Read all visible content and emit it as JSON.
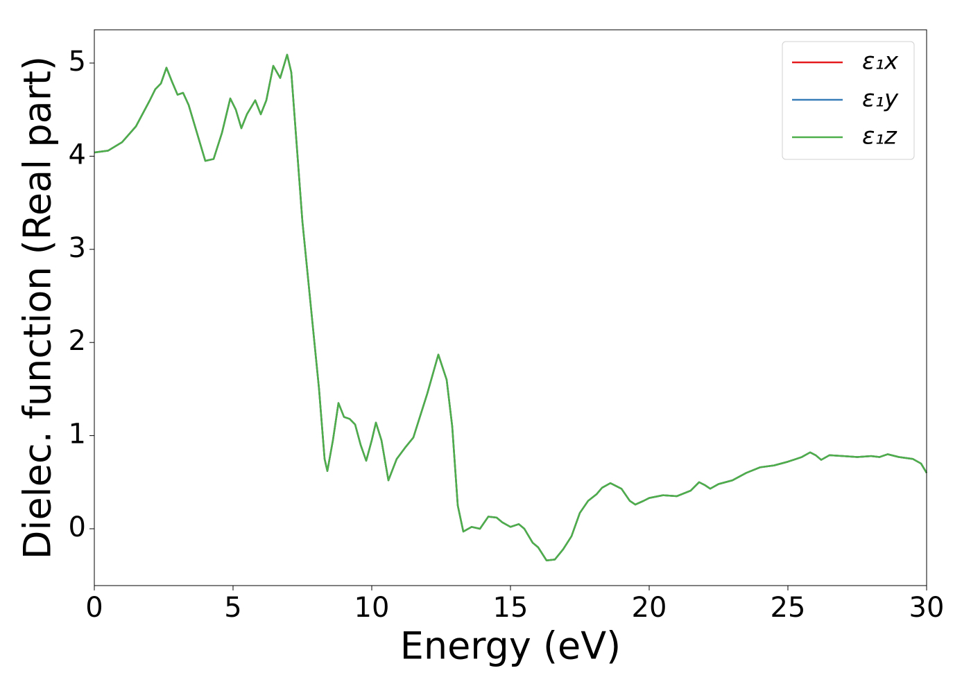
{
  "chart_data": {
    "type": "line",
    "xlabel": "Energy (eV)",
    "ylabel": "Dielec. function (Real part)",
    "x": [
      0,
      0.5,
      1,
      1.5,
      2,
      2.2,
      2.4,
      2.6,
      2.8,
      3,
      3.2,
      3.4,
      3.6,
      3.8,
      4,
      4.3,
      4.6,
      4.9,
      5.1,
      5.3,
      5.5,
      5.8,
      6,
      6.2,
      6.45,
      6.7,
      6.95,
      7.1,
      7.3,
      7.5,
      7.7,
      7.9,
      8.1,
      8.3,
      8.4,
      8.6,
      8.8,
      9,
      9.2,
      9.4,
      9.6,
      9.8,
      10,
      10.15,
      10.35,
      10.6,
      10.9,
      11.2,
      11.5,
      12,
      12.4,
      12.7,
      12.9,
      13.1,
      13.3,
      13.6,
      13.9,
      14.2,
      14.5,
      14.7,
      15,
      15.3,
      15.5,
      15.8,
      16,
      16.3,
      16.6,
      16.9,
      17.2,
      17.5,
      17.8,
      18.1,
      18.3,
      18.6,
      19,
      19.3,
      19.5,
      19.8,
      20,
      20.5,
      21,
      21.5,
      21.8,
      22,
      22.2,
      22.5,
      23,
      23.5,
      24,
      24.5,
      25,
      25.5,
      25.8,
      26,
      26.2,
      26.5,
      27,
      27.5,
      28,
      28.3,
      28.6,
      29,
      29.5,
      29.8,
      30
    ],
    "series": [
      {
        "name": "ε₁x",
        "color": "#e41a1c",
        "values": [
          4.04,
          4.06,
          4.15,
          4.32,
          4.6,
          4.72,
          4.78,
          4.95,
          4.8,
          4.66,
          4.68,
          4.55,
          4.35,
          4.15,
          3.95,
          3.97,
          4.25,
          4.62,
          4.5,
          4.3,
          4.45,
          4.6,
          4.45,
          4.6,
          4.97,
          4.84,
          5.09,
          4.9,
          4.1,
          3.3,
          2.7,
          2.1,
          1.5,
          0.75,
          0.62,
          0.95,
          1.35,
          1.2,
          1.18,
          1.12,
          0.9,
          0.73,
          0.95,
          1.14,
          0.95,
          0.52,
          0.75,
          0.87,
          0.98,
          1.45,
          1.87,
          1.6,
          1.1,
          0.25,
          -0.03,
          0.02,
          0,
          0.13,
          0.12,
          0.07,
          0.02,
          0.05,
          0,
          -0.15,
          -0.2,
          -0.34,
          -0.33,
          -0.22,
          -0.08,
          0.17,
          0.3,
          0.37,
          0.44,
          0.49,
          0.43,
          0.3,
          0.26,
          0.3,
          0.33,
          0.36,
          0.35,
          0.41,
          0.5,
          0.47,
          0.43,
          0.48,
          0.52,
          0.6,
          0.66,
          0.68,
          0.72,
          0.77,
          0.82,
          0.79,
          0.74,
          0.79,
          0.78,
          0.77,
          0.78,
          0.77,
          0.8,
          0.77,
          0.75,
          0.7,
          0.6
        ]
      },
      {
        "name": "ε₁y",
        "color": "#377eb8",
        "values": [
          4.04,
          4.06,
          4.15,
          4.32,
          4.6,
          4.72,
          4.78,
          4.95,
          4.8,
          4.66,
          4.68,
          4.55,
          4.35,
          4.15,
          3.95,
          3.97,
          4.25,
          4.62,
          4.5,
          4.3,
          4.45,
          4.6,
          4.45,
          4.6,
          4.97,
          4.84,
          5.09,
          4.9,
          4.1,
          3.3,
          2.7,
          2.1,
          1.5,
          0.75,
          0.62,
          0.95,
          1.35,
          1.2,
          1.18,
          1.12,
          0.9,
          0.73,
          0.95,
          1.14,
          0.95,
          0.52,
          0.75,
          0.87,
          0.98,
          1.45,
          1.87,
          1.6,
          1.1,
          0.25,
          -0.03,
          0.02,
          0,
          0.13,
          0.12,
          0.07,
          0.02,
          0.05,
          0,
          -0.15,
          -0.2,
          -0.34,
          -0.33,
          -0.22,
          -0.08,
          0.17,
          0.3,
          0.37,
          0.44,
          0.49,
          0.43,
          0.3,
          0.26,
          0.3,
          0.33,
          0.36,
          0.35,
          0.41,
          0.5,
          0.47,
          0.43,
          0.48,
          0.52,
          0.6,
          0.66,
          0.68,
          0.72,
          0.77,
          0.82,
          0.79,
          0.74,
          0.79,
          0.78,
          0.77,
          0.78,
          0.77,
          0.8,
          0.77,
          0.75,
          0.7,
          0.6
        ]
      },
      {
        "name": "ε₁z",
        "color": "#4daf4a",
        "values": [
          4.04,
          4.06,
          4.15,
          4.32,
          4.6,
          4.72,
          4.78,
          4.95,
          4.8,
          4.66,
          4.68,
          4.55,
          4.35,
          4.15,
          3.95,
          3.97,
          4.25,
          4.62,
          4.5,
          4.3,
          4.45,
          4.6,
          4.45,
          4.6,
          4.97,
          4.84,
          5.09,
          4.9,
          4.1,
          3.3,
          2.7,
          2.1,
          1.5,
          0.75,
          0.62,
          0.95,
          1.35,
          1.2,
          1.18,
          1.12,
          0.9,
          0.73,
          0.95,
          1.14,
          0.95,
          0.52,
          0.75,
          0.87,
          0.98,
          1.45,
          1.87,
          1.6,
          1.1,
          0.25,
          -0.03,
          0.02,
          0,
          0.13,
          0.12,
          0.07,
          0.02,
          0.05,
          0,
          -0.15,
          -0.2,
          -0.34,
          -0.33,
          -0.22,
          -0.08,
          0.17,
          0.3,
          0.37,
          0.44,
          0.49,
          0.43,
          0.3,
          0.26,
          0.3,
          0.33,
          0.36,
          0.35,
          0.41,
          0.5,
          0.47,
          0.43,
          0.48,
          0.52,
          0.6,
          0.66,
          0.68,
          0.72,
          0.77,
          0.82,
          0.79,
          0.74,
          0.79,
          0.78,
          0.77,
          0.78,
          0.77,
          0.8,
          0.77,
          0.75,
          0.7,
          0.6
        ]
      }
    ],
    "xlim": [
      0,
      30
    ],
    "xticks": [
      0,
      5,
      10,
      15,
      20,
      25,
      30
    ],
    "ylim": [
      -0.61,
      5.357
    ],
    "yticks": [
      0,
      1,
      2,
      3,
      4,
      5
    ],
    "grid": false,
    "legend": "upper right"
  }
}
